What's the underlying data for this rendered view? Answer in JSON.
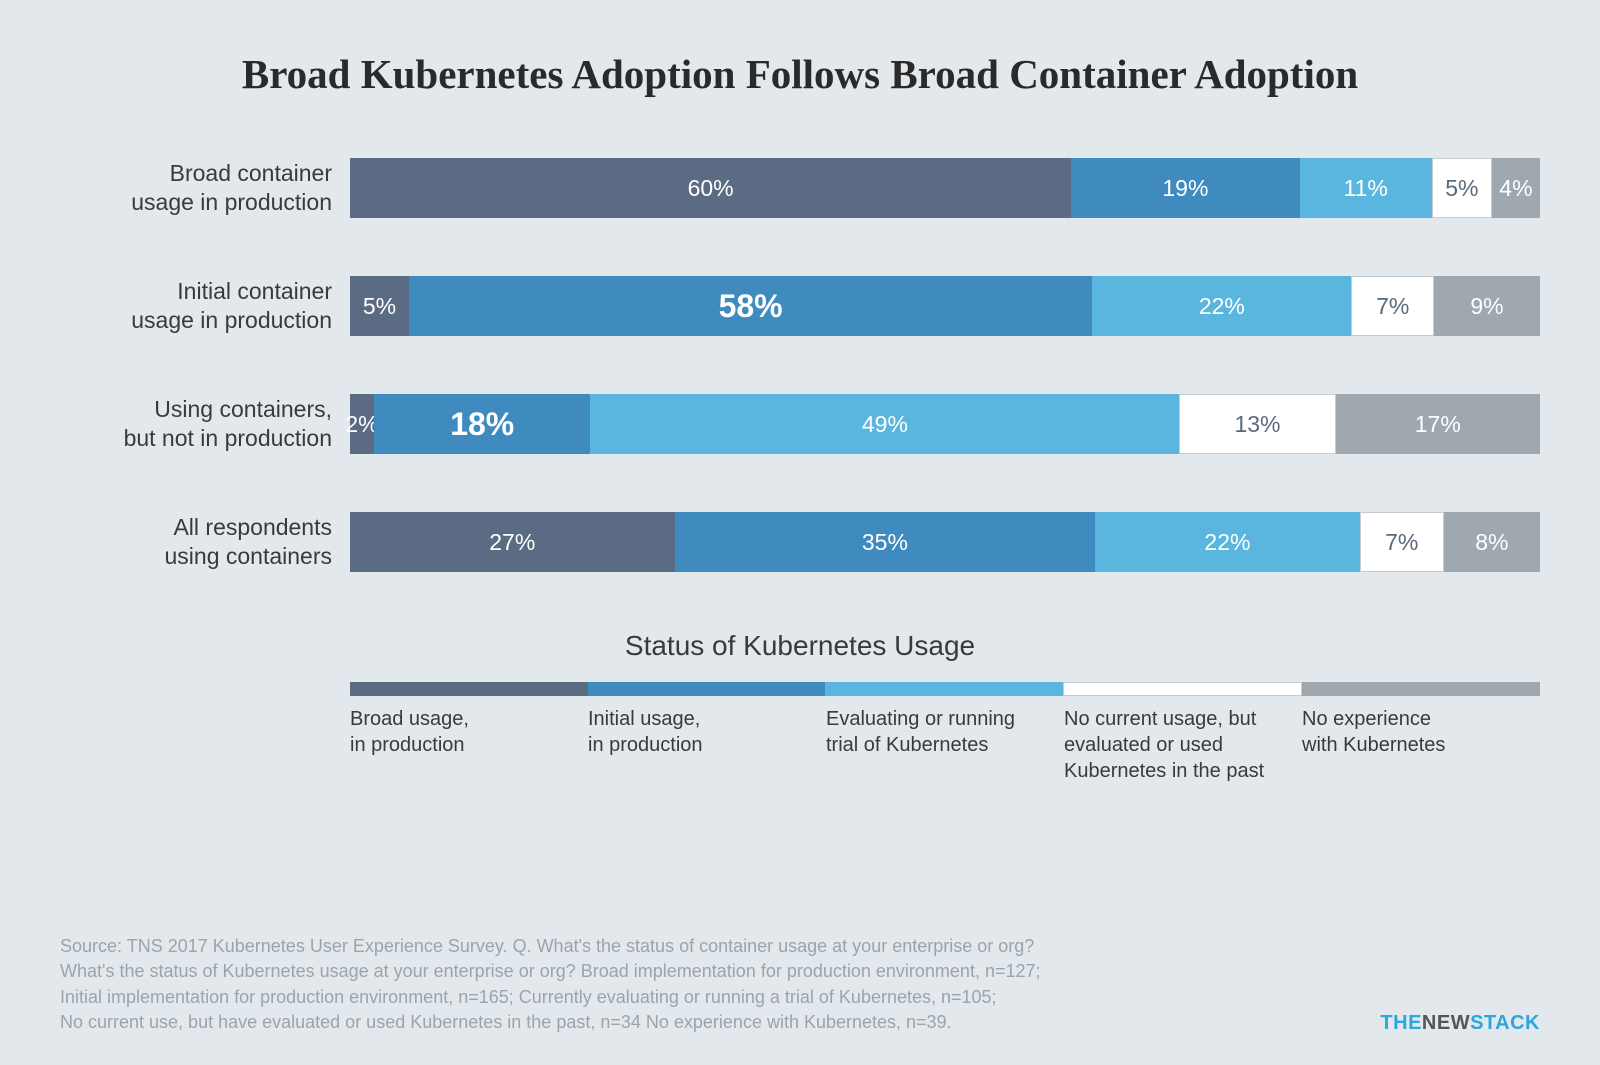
{
  "title": "Broad Kubernetes Adoption Follows Broad Container Adoption",
  "title_fontsize": 41,
  "row_label_fontsize": 23,
  "segment_fontsize": 23,
  "segment_fontsize_bold": 32,
  "legend_title": "Status of Kubernetes Usage",
  "legend_title_fontsize": 28,
  "legend_label_fontsize": 20,
  "source_fontsize": 18,
  "brand_fontsize": 20,
  "background_color": "#e3e8ec",
  "colors": {
    "broad": "#5b6b83",
    "initial": "#3f8bbf",
    "evaluating": "#5bb6df",
    "no_current": "#ffffff",
    "no_current_border": "#c5ccd3",
    "no_exp": "#9fa7af"
  },
  "legend_items": [
    {
      "color_key": "broad",
      "label": "Broad usage,\nin production"
    },
    {
      "color_key": "initial",
      "label": "Initial usage,\nin production"
    },
    {
      "color_key": "evaluating",
      "label": "Evaluating or running\ntrial of Kubernetes"
    },
    {
      "color_key": "no_current",
      "label": "No current usage, but\nevaluated or used\nKubernetes in the past"
    },
    {
      "color_key": "no_exp",
      "label": "No experience\nwith Kubernetes"
    }
  ],
  "rows": [
    {
      "label": "Broad container\nusage in production",
      "segments": [
        {
          "value": 60,
          "label": "60%",
          "color_key": "broad"
        },
        {
          "value": 19,
          "label": "19%",
          "color_key": "initial"
        },
        {
          "value": 11,
          "label": "11%",
          "color_key": "evaluating"
        },
        {
          "value": 5,
          "label": "5%",
          "color_key": "no_current"
        },
        {
          "value": 4,
          "label": "4%",
          "color_key": "no_exp"
        }
      ]
    },
    {
      "label": "Initial container\nusage in production",
      "segments": [
        {
          "value": 5,
          "label": "5%",
          "color_key": "broad"
        },
        {
          "value": 58,
          "label": "58%",
          "color_key": "initial",
          "bold": true
        },
        {
          "value": 22,
          "label": "22%",
          "color_key": "evaluating"
        },
        {
          "value": 7,
          "label": "7%",
          "color_key": "no_current"
        },
        {
          "value": 9,
          "label": "9%",
          "color_key": "no_exp"
        }
      ]
    },
    {
      "label": "Using containers,\nbut not in production",
      "segments": [
        {
          "value": 2,
          "label": "2%",
          "color_key": "broad"
        },
        {
          "value": 18,
          "label": "18%",
          "color_key": "initial",
          "bold": true
        },
        {
          "value": 49,
          "label": "49%",
          "color_key": "evaluating"
        },
        {
          "value": 13,
          "label": "13%",
          "color_key": "no_current"
        },
        {
          "value": 17,
          "label": "17%",
          "color_key": "no_exp"
        }
      ]
    },
    {
      "label": "All respondents\nusing containers",
      "segments": [
        {
          "value": 27,
          "label": "27%",
          "color_key": "broad"
        },
        {
          "value": 35,
          "label": "35%",
          "color_key": "initial"
        },
        {
          "value": 22,
          "label": "22%",
          "color_key": "evaluating"
        },
        {
          "value": 7,
          "label": "7%",
          "color_key": "no_current"
        },
        {
          "value": 8,
          "label": "8%",
          "color_key": "no_exp"
        }
      ]
    }
  ],
  "source_lines": [
    "Source: TNS 2017 Kubernetes User Experience Survey. Q. What's the status of container usage at your enterprise or org?",
    "What's the status of Kubernetes usage at your enterprise or org? Broad implementation for production environment, n=127;",
    "Initial implementation for production environment, n=165; Currently evaluating or running a trial of Kubernetes, n=105;",
    "No current use, but have evaluated or used Kubernetes in the past, n=34 No experience with Kubernetes, n=39."
  ],
  "brand": {
    "the": "THE",
    "new": "NEW",
    "stack": "STACK"
  }
}
